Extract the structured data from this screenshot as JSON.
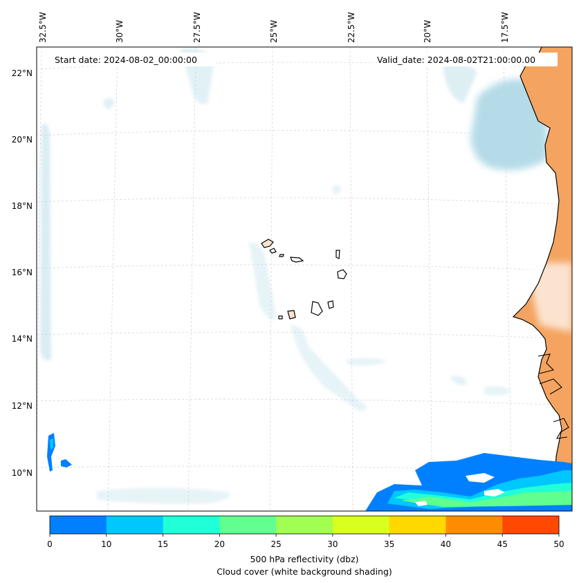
{
  "map": {
    "start_label": "Start date: 2024-08-02_00:00:00",
    "valid_label": "Valid_date: 2024-08-02T21:00:00.00",
    "lon_ticks": [
      "32.5°W",
      "30°W",
      "27.5°W",
      "25°W",
      "22.5°W",
      "20°W",
      "17.5°W"
    ],
    "lat_ticks": [
      "22°N",
      "20°N",
      "18°N",
      "16°N",
      "14°N",
      "12°N",
      "10°N"
    ],
    "land_color": "#f4a460",
    "cloud_color": "#add8e6"
  },
  "colorbar": {
    "ticks": [
      "0",
      "10",
      "15",
      "20",
      "25",
      "30",
      "35",
      "40",
      "45",
      "50"
    ],
    "colors": [
      "#0080ff",
      "#00c8ff",
      "#20ffd8",
      "#60ff90",
      "#a0ff50",
      "#d8ff20",
      "#ffd800",
      "#ff8c00",
      "#ff4800"
    ],
    "label_line1": "500 hPa reflectivity (dbz)",
    "label_line2": "Cloud cover (white background shading)"
  }
}
